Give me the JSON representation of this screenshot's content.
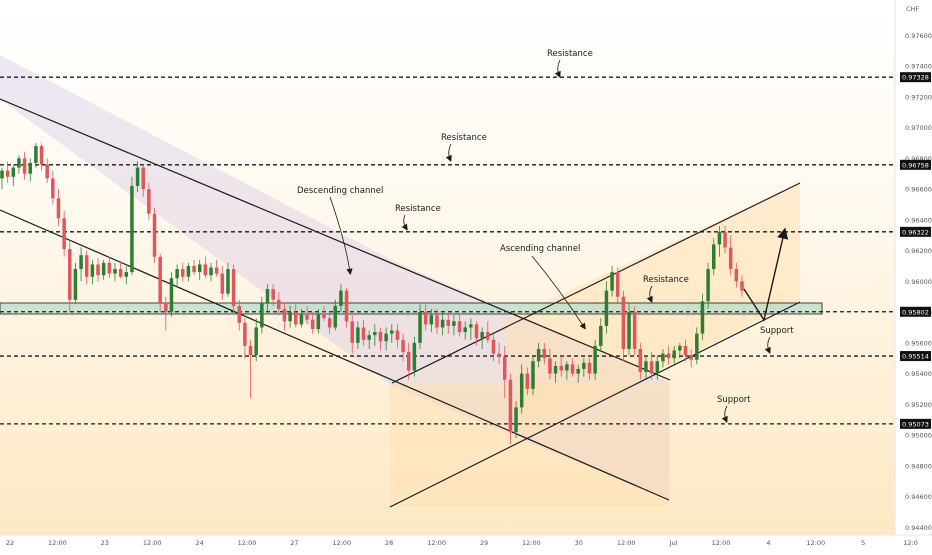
{
  "chart_data": {
    "type": "candlestick",
    "currency": "CHF",
    "ylim": [
      0.9435,
      0.9783
    ],
    "y_ticks": [
      "0.97600",
      "0.97400",
      "0.97200",
      "0.97000",
      "0.96800",
      "0.96600",
      "0.96400",
      "0.96200",
      "0.96000",
      "0.95800",
      "0.95600",
      "0.95400",
      "0.95200",
      "0.95000",
      "0.94800",
      "0.94600",
      "0.94400"
    ],
    "x_ticks": [
      "22",
      "12:00",
      "23",
      "12:00",
      "24",
      "12:00",
      "27",
      "12:00",
      "28",
      "12:00",
      "29",
      "12:00",
      "30",
      "12:00",
      "Jul",
      "12:00",
      "4",
      "12:00",
      "5",
      "12:0"
    ],
    "levels": [
      {
        "label": "0.97328",
        "value": 0.97328,
        "kind": "resistance"
      },
      {
        "label": "0.96758",
        "value": 0.96758,
        "kind": "resistance"
      },
      {
        "label": "0.96322",
        "value": 0.96322,
        "kind": "resistance"
      },
      {
        "label": "0.95802",
        "value": 0.95802,
        "kind": "pivot"
      },
      {
        "label": "0.95514",
        "value": 0.95514,
        "kind": "support"
      },
      {
        "label": "0.95073",
        "value": 0.95073,
        "kind": "support"
      }
    ],
    "annotations": [
      "Resistance",
      "Resistance",
      "Descending channel",
      "Resistance",
      "Ascending channel",
      "Resistance",
      "Support",
      "Support"
    ],
    "colors": {
      "up": "#2e7d32",
      "down": "#e0565b",
      "line": "#1a1a1a",
      "desc_fill": "#d9cbe6",
      "asc_fill": "#ffe0b2",
      "zone_fill": "#b9dcc9",
      "bg_top": "#ffffff",
      "bg_bottom": "#fde8c4"
    },
    "candles": [
      {
        "o": 0.9667,
        "h": 0.9674,
        "l": 0.966,
        "c": 0.9672
      },
      {
        "o": 0.9672,
        "h": 0.9678,
        "l": 0.9664,
        "c": 0.9668
      },
      {
        "o": 0.9668,
        "h": 0.9676,
        "l": 0.9662,
        "c": 0.9674
      },
      {
        "o": 0.9674,
        "h": 0.9682,
        "l": 0.967,
        "c": 0.968
      },
      {
        "o": 0.968,
        "h": 0.9684,
        "l": 0.9666,
        "c": 0.967
      },
      {
        "o": 0.967,
        "h": 0.968,
        "l": 0.9665,
        "c": 0.9677
      },
      {
        "o": 0.9677,
        "h": 0.969,
        "l": 0.9674,
        "c": 0.9688
      },
      {
        "o": 0.9688,
        "h": 0.969,
        "l": 0.9672,
        "c": 0.9676
      },
      {
        "o": 0.9676,
        "h": 0.968,
        "l": 0.9664,
        "c": 0.9667
      },
      {
        "o": 0.9667,
        "h": 0.9672,
        "l": 0.965,
        "c": 0.9654
      },
      {
        "o": 0.9654,
        "h": 0.966,
        "l": 0.9636,
        "c": 0.9641
      },
      {
        "o": 0.9641,
        "h": 0.9646,
        "l": 0.9616,
        "c": 0.9621
      },
      {
        "o": 0.9621,
        "h": 0.9626,
        "l": 0.958,
        "c": 0.9588
      },
      {
        "o": 0.9588,
        "h": 0.9612,
        "l": 0.9586,
        "c": 0.9608
      },
      {
        "o": 0.9608,
        "h": 0.9622,
        "l": 0.96,
        "c": 0.9617
      },
      {
        "o": 0.9617,
        "h": 0.962,
        "l": 0.9598,
        "c": 0.9603
      },
      {
        "o": 0.9603,
        "h": 0.9614,
        "l": 0.9598,
        "c": 0.9611
      },
      {
        "o": 0.9611,
        "h": 0.9615,
        "l": 0.96,
        "c": 0.9604
      },
      {
        "o": 0.9604,
        "h": 0.9614,
        "l": 0.9601,
        "c": 0.9612
      },
      {
        "o": 0.9612,
        "h": 0.9616,
        "l": 0.9602,
        "c": 0.9605
      },
      {
        "o": 0.9605,
        "h": 0.9612,
        "l": 0.96,
        "c": 0.9608
      },
      {
        "o": 0.9608,
        "h": 0.9613,
        "l": 0.9602,
        "c": 0.9603
      },
      {
        "o": 0.9603,
        "h": 0.961,
        "l": 0.9598,
        "c": 0.9606
      },
      {
        "o": 0.9606,
        "h": 0.9668,
        "l": 0.9604,
        "c": 0.9662
      },
      {
        "o": 0.9662,
        "h": 0.9678,
        "l": 0.9658,
        "c": 0.9674
      },
      {
        "o": 0.9674,
        "h": 0.9676,
        "l": 0.9655,
        "c": 0.966
      },
      {
        "o": 0.966,
        "h": 0.9664,
        "l": 0.964,
        "c": 0.9644
      },
      {
        "o": 0.9644,
        "h": 0.9648,
        "l": 0.9612,
        "c": 0.9616
      },
      {
        "o": 0.9616,
        "h": 0.9618,
        "l": 0.958,
        "c": 0.9586
      },
      {
        "o": 0.9586,
        "h": 0.959,
        "l": 0.9568,
        "c": 0.958
      },
      {
        "o": 0.958,
        "h": 0.9606,
        "l": 0.9577,
        "c": 0.9602
      },
      {
        "o": 0.9602,
        "h": 0.9611,
        "l": 0.9596,
        "c": 0.9608
      },
      {
        "o": 0.9608,
        "h": 0.9612,
        "l": 0.96,
        "c": 0.9603
      },
      {
        "o": 0.9603,
        "h": 0.9612,
        "l": 0.96,
        "c": 0.961
      },
      {
        "o": 0.961,
        "h": 0.9614,
        "l": 0.9604,
        "c": 0.9606
      },
      {
        "o": 0.9606,
        "h": 0.9614,
        "l": 0.9601,
        "c": 0.9611
      },
      {
        "o": 0.9611,
        "h": 0.9616,
        "l": 0.9602,
        "c": 0.9604
      },
      {
        "o": 0.9604,
        "h": 0.9612,
        "l": 0.96,
        "c": 0.9609
      },
      {
        "o": 0.9609,
        "h": 0.9614,
        "l": 0.9603,
        "c": 0.9605
      },
      {
        "o": 0.9605,
        "h": 0.961,
        "l": 0.9588,
        "c": 0.9592
      },
      {
        "o": 0.9592,
        "h": 0.9612,
        "l": 0.959,
        "c": 0.9608
      },
      {
        "o": 0.9608,
        "h": 0.9611,
        "l": 0.958,
        "c": 0.9584
      },
      {
        "o": 0.9584,
        "h": 0.9588,
        "l": 0.9568,
        "c": 0.9573
      },
      {
        "o": 0.9573,
        "h": 0.9576,
        "l": 0.955,
        "c": 0.9558
      },
      {
        "o": 0.9558,
        "h": 0.9562,
        "l": 0.9524,
        "c": 0.9552
      },
      {
        "o": 0.9552,
        "h": 0.9576,
        "l": 0.9548,
        "c": 0.957
      },
      {
        "o": 0.957,
        "h": 0.959,
        "l": 0.9566,
        "c": 0.9586
      },
      {
        "o": 0.9586,
        "h": 0.9598,
        "l": 0.958,
        "c": 0.9595
      },
      {
        "o": 0.9595,
        "h": 0.9598,
        "l": 0.9584,
        "c": 0.9588
      },
      {
        "o": 0.9588,
        "h": 0.9593,
        "l": 0.9578,
        "c": 0.9582
      },
      {
        "o": 0.9582,
        "h": 0.9586,
        "l": 0.9568,
        "c": 0.9574
      },
      {
        "o": 0.9574,
        "h": 0.9584,
        "l": 0.957,
        "c": 0.958
      },
      {
        "o": 0.958,
        "h": 0.9585,
        "l": 0.957,
        "c": 0.9572
      },
      {
        "o": 0.9572,
        "h": 0.9582,
        "l": 0.957,
        "c": 0.9579
      },
      {
        "o": 0.9579,
        "h": 0.9584,
        "l": 0.9572,
        "c": 0.9575
      },
      {
        "o": 0.9575,
        "h": 0.958,
        "l": 0.9566,
        "c": 0.9569
      },
      {
        "o": 0.9569,
        "h": 0.9582,
        "l": 0.9566,
        "c": 0.9579
      },
      {
        "o": 0.9579,
        "h": 0.9584,
        "l": 0.9574,
        "c": 0.9576
      },
      {
        "o": 0.9576,
        "h": 0.958,
        "l": 0.9566,
        "c": 0.957
      },
      {
        "o": 0.957,
        "h": 0.9588,
        "l": 0.9568,
        "c": 0.9584
      },
      {
        "o": 0.9584,
        "h": 0.9598,
        "l": 0.958,
        "c": 0.9594
      },
      {
        "o": 0.9594,
        "h": 0.9596,
        "l": 0.957,
        "c": 0.9574
      },
      {
        "o": 0.9574,
        "h": 0.9578,
        "l": 0.9553,
        "c": 0.956
      },
      {
        "o": 0.956,
        "h": 0.9574,
        "l": 0.9556,
        "c": 0.957
      },
      {
        "o": 0.957,
        "h": 0.9575,
        "l": 0.9558,
        "c": 0.9562
      },
      {
        "o": 0.9562,
        "h": 0.9568,
        "l": 0.9556,
        "c": 0.9565
      },
      {
        "o": 0.9565,
        "h": 0.9572,
        "l": 0.9558,
        "c": 0.9567
      },
      {
        "o": 0.9567,
        "h": 0.957,
        "l": 0.9555,
        "c": 0.9561
      },
      {
        "o": 0.9561,
        "h": 0.957,
        "l": 0.9555,
        "c": 0.9566
      },
      {
        "o": 0.9566,
        "h": 0.9572,
        "l": 0.956,
        "c": 0.9568
      },
      {
        "o": 0.9568,
        "h": 0.9572,
        "l": 0.9557,
        "c": 0.9562
      },
      {
        "o": 0.9562,
        "h": 0.9566,
        "l": 0.9548,
        "c": 0.9554
      },
      {
        "o": 0.9554,
        "h": 0.956,
        "l": 0.9536,
        "c": 0.9542
      },
      {
        "o": 0.9542,
        "h": 0.9564,
        "l": 0.9538,
        "c": 0.956
      },
      {
        "o": 0.956,
        "h": 0.9585,
        "l": 0.9556,
        "c": 0.958
      },
      {
        "o": 0.958,
        "h": 0.9585,
        "l": 0.9568,
        "c": 0.9572
      },
      {
        "o": 0.9572,
        "h": 0.9582,
        "l": 0.9567,
        "c": 0.9578
      },
      {
        "o": 0.9578,
        "h": 0.9582,
        "l": 0.9566,
        "c": 0.957
      },
      {
        "o": 0.957,
        "h": 0.958,
        "l": 0.9565,
        "c": 0.9575
      },
      {
        "o": 0.9575,
        "h": 0.958,
        "l": 0.9566,
        "c": 0.9571
      },
      {
        "o": 0.9571,
        "h": 0.9578,
        "l": 0.9565,
        "c": 0.9574
      },
      {
        "o": 0.9574,
        "h": 0.9578,
        "l": 0.9564,
        "c": 0.9567
      },
      {
        "o": 0.9567,
        "h": 0.9574,
        "l": 0.9562,
        "c": 0.957
      },
      {
        "o": 0.957,
        "h": 0.9576,
        "l": 0.9562,
        "c": 0.9572
      },
      {
        "o": 0.9572,
        "h": 0.9574,
        "l": 0.9558,
        "c": 0.9563
      },
      {
        "o": 0.9563,
        "h": 0.957,
        "l": 0.9556,
        "c": 0.9567
      },
      {
        "o": 0.9567,
        "h": 0.9574,
        "l": 0.956,
        "c": 0.9562
      },
      {
        "o": 0.9562,
        "h": 0.9566,
        "l": 0.9548,
        "c": 0.9553
      },
      {
        "o": 0.9553,
        "h": 0.956,
        "l": 0.9546,
        "c": 0.9551
      },
      {
        "o": 0.9551,
        "h": 0.9558,
        "l": 0.9524,
        "c": 0.9536
      },
      {
        "o": 0.9536,
        "h": 0.954,
        "l": 0.9494,
        "c": 0.9502
      },
      {
        "o": 0.9502,
        "h": 0.9522,
        "l": 0.9498,
        "c": 0.9518
      },
      {
        "o": 0.9518,
        "h": 0.9546,
        "l": 0.9514,
        "c": 0.954
      },
      {
        "o": 0.954,
        "h": 0.9544,
        "l": 0.9526,
        "c": 0.953
      },
      {
        "o": 0.953,
        "h": 0.9552,
        "l": 0.9526,
        "c": 0.9548
      },
      {
        "o": 0.9548,
        "h": 0.956,
        "l": 0.9544,
        "c": 0.9556
      },
      {
        "o": 0.9556,
        "h": 0.956,
        "l": 0.9546,
        "c": 0.955
      },
      {
        "o": 0.955,
        "h": 0.9556,
        "l": 0.9536,
        "c": 0.954
      },
      {
        "o": 0.954,
        "h": 0.9548,
        "l": 0.9534,
        "c": 0.9545
      },
      {
        "o": 0.9545,
        "h": 0.9552,
        "l": 0.9538,
        "c": 0.9542
      },
      {
        "o": 0.9542,
        "h": 0.9548,
        "l": 0.9536,
        "c": 0.9546
      },
      {
        "o": 0.9546,
        "h": 0.955,
        "l": 0.9538,
        "c": 0.954
      },
      {
        "o": 0.954,
        "h": 0.9546,
        "l": 0.9534,
        "c": 0.9543
      },
      {
        "o": 0.9543,
        "h": 0.955,
        "l": 0.9538,
        "c": 0.9547
      },
      {
        "o": 0.9547,
        "h": 0.955,
        "l": 0.9536,
        "c": 0.954
      },
      {
        "o": 0.954,
        "h": 0.9562,
        "l": 0.9536,
        "c": 0.9558
      },
      {
        "o": 0.9558,
        "h": 0.9576,
        "l": 0.9554,
        "c": 0.9571
      },
      {
        "o": 0.9571,
        "h": 0.96,
        "l": 0.9566,
        "c": 0.9594
      },
      {
        "o": 0.9594,
        "h": 0.961,
        "l": 0.959,
        "c": 0.9606
      },
      {
        "o": 0.9606,
        "h": 0.9609,
        "l": 0.9586,
        "c": 0.959
      },
      {
        "o": 0.959,
        "h": 0.9594,
        "l": 0.9548,
        "c": 0.9556
      },
      {
        "o": 0.9556,
        "h": 0.9586,
        "l": 0.9552,
        "c": 0.958
      },
      {
        "o": 0.958,
        "h": 0.9584,
        "l": 0.9552,
        "c": 0.9556
      },
      {
        "o": 0.9556,
        "h": 0.956,
        "l": 0.9536,
        "c": 0.9541
      },
      {
        "o": 0.9541,
        "h": 0.9552,
        "l": 0.9537,
        "c": 0.9548
      },
      {
        "o": 0.9548,
        "h": 0.9554,
        "l": 0.9536,
        "c": 0.954
      },
      {
        "o": 0.954,
        "h": 0.9552,
        "l": 0.9536,
        "c": 0.9548
      },
      {
        "o": 0.9548,
        "h": 0.9556,
        "l": 0.9544,
        "c": 0.9553
      },
      {
        "o": 0.9553,
        "h": 0.9558,
        "l": 0.9546,
        "c": 0.955
      },
      {
        "o": 0.955,
        "h": 0.9558,
        "l": 0.9546,
        "c": 0.9555
      },
      {
        "o": 0.9555,
        "h": 0.956,
        "l": 0.955,
        "c": 0.9558
      },
      {
        "o": 0.9558,
        "h": 0.9562,
        "l": 0.9548,
        "c": 0.9552
      },
      {
        "o": 0.9552,
        "h": 0.9556,
        "l": 0.9544,
        "c": 0.9549
      },
      {
        "o": 0.9549,
        "h": 0.957,
        "l": 0.9546,
        "c": 0.9566
      },
      {
        "o": 0.9566,
        "h": 0.9592,
        "l": 0.9562,
        "c": 0.9587
      },
      {
        "o": 0.9587,
        "h": 0.9612,
        "l": 0.9582,
        "c": 0.9608
      },
      {
        "o": 0.9608,
        "h": 0.9628,
        "l": 0.9604,
        "c": 0.9624
      },
      {
        "o": 0.9624,
        "h": 0.9636,
        "l": 0.9616,
        "c": 0.9632
      },
      {
        "o": 0.9632,
        "h": 0.9636,
        "l": 0.9618,
        "c": 0.9622
      },
      {
        "o": 0.9622,
        "h": 0.963,
        "l": 0.9604,
        "c": 0.9608
      },
      {
        "o": 0.9608,
        "h": 0.9612,
        "l": 0.9596,
        "c": 0.96
      },
      {
        "o": 0.96,
        "h": 0.9604,
        "l": 0.959,
        "c": 0.9594
      }
    ]
  },
  "labels": {
    "resistance_1": "Resistance",
    "resistance_2": "Resistance",
    "resistance_3": "Resistance",
    "resistance_4": "Resistance",
    "descending": "Descending channel",
    "ascending": "Ascending channel",
    "support_1": "Support",
    "support_2": "Support",
    "currency": "CHF"
  }
}
